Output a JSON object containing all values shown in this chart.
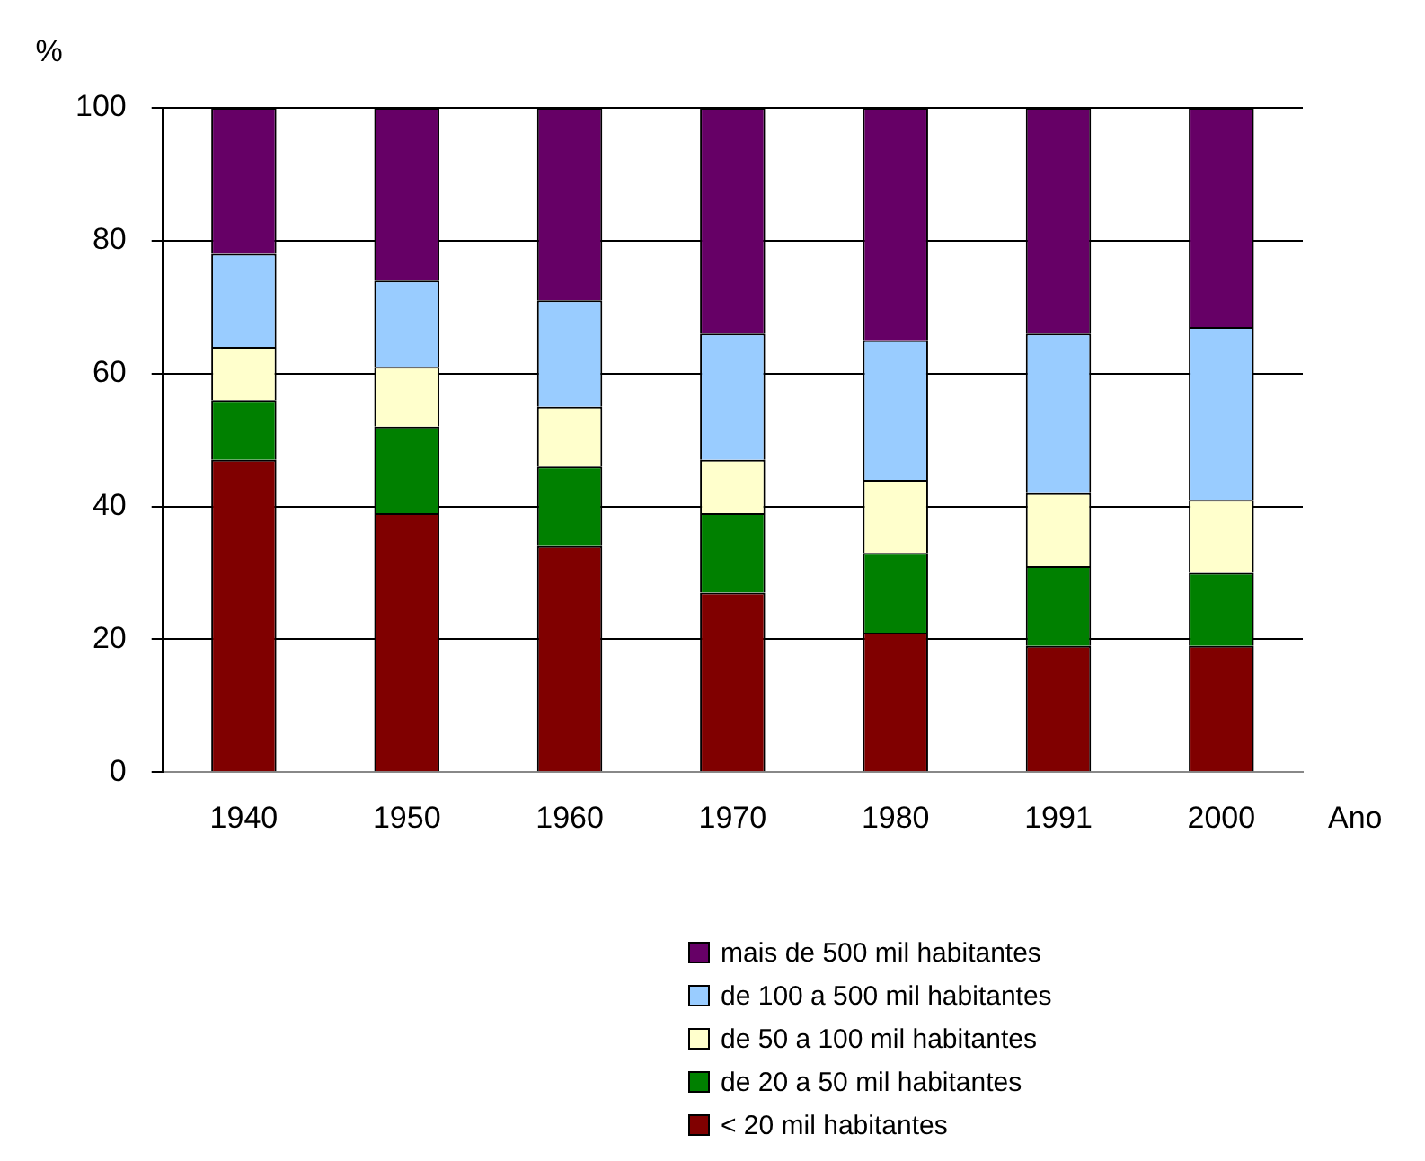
{
  "chart_data": {
    "type": "bar",
    "stacked": true,
    "ylabel": "%",
    "xlabel": "Ano",
    "categories": [
      "1940",
      "1950",
      "1960",
      "1970",
      "1980",
      "1991",
      "2000"
    ],
    "series": [
      {
        "name": "< 20 mil habitantes",
        "color": "#800000",
        "values": [
          47,
          39,
          34,
          27,
          21,
          19,
          19
        ]
      },
      {
        "name": "de 20 a 50 mil habitantes",
        "color": "#008000",
        "values": [
          9,
          13,
          12,
          12,
          12,
          12,
          11
        ]
      },
      {
        "name": "de 50 a 100 mil habitantes",
        "color": "#ffffcc",
        "values": [
          8,
          9,
          9,
          8,
          11,
          11,
          11
        ]
      },
      {
        "name": "de 100 a  500 mil habitantes",
        "color": "#99ccff",
        "values": [
          14,
          13,
          16,
          19,
          21,
          24,
          26
        ]
      },
      {
        "name": "mais de 500 mil habitantes",
        "color": "#660066",
        "values": [
          22,
          26,
          29,
          34,
          35,
          34,
          33
        ]
      }
    ],
    "ylim": [
      0,
      100
    ],
    "yticks": [
      0,
      20,
      40,
      60,
      80,
      100
    ],
    "grid": "y",
    "legend": "bottom"
  }
}
